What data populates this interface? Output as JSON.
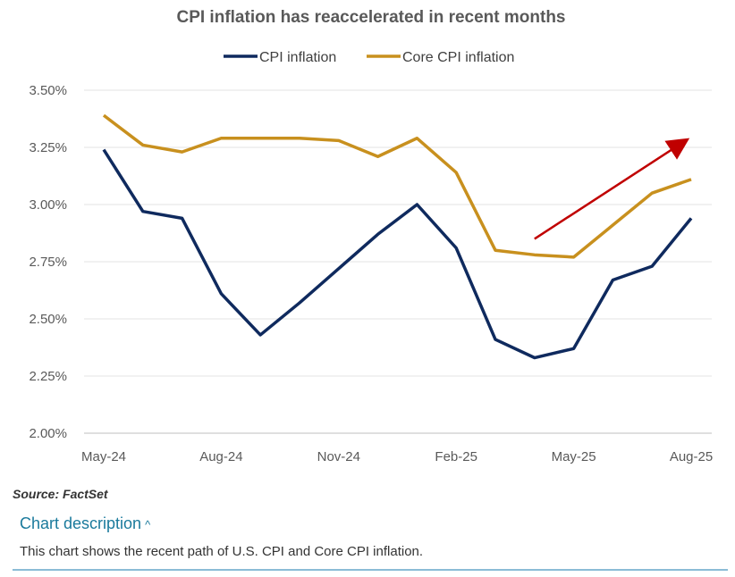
{
  "chart_data": {
    "type": "line",
    "title": "CPI inflation has reaccelerated in recent months",
    "categories": [
      "May-24",
      "Jun-24",
      "Jul-24",
      "Aug-24",
      "Sep-24",
      "Oct-24",
      "Nov-24",
      "Dec-24",
      "Jan-25",
      "Feb-25",
      "Mar-25",
      "Apr-25",
      "May-25",
      "Jun-25",
      "Jul-25",
      "Aug-25"
    ],
    "x_tick_labels": [
      "May-24",
      "Aug-24",
      "Nov-24",
      "Feb-25",
      "May-25",
      "Aug-25"
    ],
    "y_tick_labels": [
      "3.50%",
      "3.25%",
      "3.00%",
      "2.75%",
      "2.50%",
      "2.25%",
      "2.00%"
    ],
    "ylim": [
      2.0,
      3.5
    ],
    "yticks": [
      3.5,
      3.25,
      3.0,
      2.75,
      2.5,
      2.25,
      2.0
    ],
    "ylabel": "",
    "xlabel": "",
    "grid": true,
    "legend_position": "top-center",
    "series": [
      {
        "name": "CPI inflation",
        "color": "#0f2a5e",
        "values": [
          3.24,
          2.97,
          2.94,
          2.61,
          2.43,
          2.57,
          2.72,
          2.87,
          3.0,
          2.81,
          2.41,
          2.33,
          2.37,
          2.67,
          2.73,
          2.94
        ]
      },
      {
        "name": "Core CPI inflation",
        "color": "#c8901e",
        "values": [
          3.39,
          3.26,
          3.23,
          3.29,
          3.29,
          3.29,
          3.28,
          3.21,
          3.29,
          3.14,
          2.8,
          2.78,
          2.77,
          2.91,
          3.05,
          3.11
        ]
      }
    ],
    "annotation": {
      "type": "arrow",
      "color": "#c00000",
      "from": [
        "Apr-25",
        2.85
      ],
      "to": [
        "Aug-25-ish",
        3.28
      ]
    }
  },
  "source": "Source: FactSet",
  "description": {
    "toggle_label": "Chart description",
    "text": "This chart shows the recent path of U.S. CPI and Core CPI inflation."
  }
}
